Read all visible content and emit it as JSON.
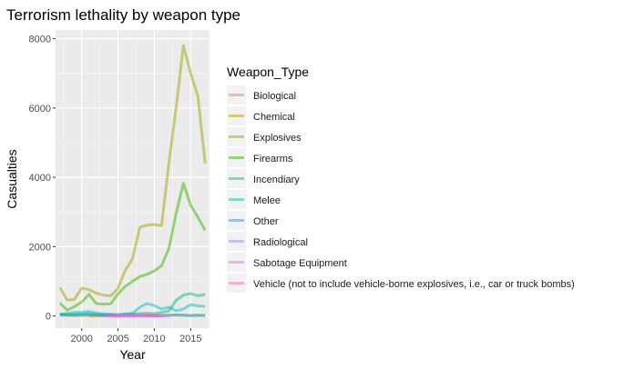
{
  "chart_data": {
    "type": "line",
    "title": "Terrorism lethality by weapon type",
    "xlabel": "Year",
    "ylabel": "Casualties",
    "xlim": [
      1996.4,
      2017.6
    ],
    "ylim": [
      -350,
      8250
    ],
    "x_ticks": [
      2000,
      2005,
      2010,
      2015
    ],
    "y_ticks": [
      0,
      2000,
      4000,
      6000,
      8000
    ],
    "grid": true,
    "legend_title": "Weapon_Type",
    "legend_position": "right",
    "series": [
      {
        "name": "Biological",
        "color": "#F8766D",
        "x": [
          2001,
          2005
        ],
        "y": [
          5,
          0
        ]
      },
      {
        "name": "Chemical",
        "color": "#D89000",
        "x": [
          1997,
          1998,
          1999,
          2000,
          2001,
          2002,
          2003,
          2004,
          2005,
          2006,
          2007,
          2008,
          2009,
          2010,
          2011,
          2012,
          2013,
          2014,
          2015,
          2016,
          2017
        ],
        "y": [
          20,
          10,
          15,
          10,
          15,
          10,
          20,
          25,
          20,
          30,
          20,
          15,
          20,
          10,
          15,
          20,
          25,
          20,
          15,
          20,
          15
        ]
      },
      {
        "name": "Explosives",
        "color": "#A3A500",
        "x": [
          1997,
          1998,
          1999,
          2000,
          2001,
          2002,
          2003,
          2004,
          2005,
          2006,
          2007,
          2008,
          2009,
          2010,
          2011,
          2012,
          2013,
          2014,
          2015,
          2016,
          2017
        ],
        "y": [
          820,
          460,
          480,
          800,
          760,
          660,
          600,
          580,
          800,
          1320,
          1650,
          2560,
          2620,
          2640,
          2610,
          4410,
          5990,
          7800,
          7000,
          6350,
          4400
        ]
      },
      {
        "name": "Firearms",
        "color": "#39B600",
        "x": [
          1997,
          1998,
          1999,
          2000,
          2001,
          2002,
          2003,
          2004,
          2005,
          2006,
          2007,
          2008,
          2009,
          2010,
          2011,
          2012,
          2013,
          2014,
          2015,
          2016,
          2017
        ],
        "y": [
          370,
          170,
          270,
          400,
          620,
          360,
          340,
          350,
          640,
          850,
          1000,
          1140,
          1200,
          1300,
          1450,
          1950,
          2950,
          3830,
          3200,
          2850,
          2470
        ]
      },
      {
        "name": "Incendiary",
        "color": "#00BF7D",
        "x": [
          1997,
          1998,
          1999,
          2000,
          2001,
          2002,
          2003,
          2004,
          2005,
          2006,
          2007,
          2008,
          2009,
          2010,
          2011,
          2012,
          2013,
          2014,
          2015,
          2016,
          2017
        ],
        "y": [
          60,
          40,
          50,
          60,
          70,
          50,
          40,
          50,
          40,
          50,
          60,
          70,
          80,
          70,
          100,
          150,
          450,
          600,
          650,
          580,
          620
        ]
      },
      {
        "name": "Melee",
        "color": "#00BFC4",
        "x": [
          1997,
          1998,
          1999,
          2000,
          2001,
          2002,
          2003,
          2004,
          2005,
          2006,
          2007,
          2008,
          2009,
          2010,
          2011,
          2012,
          2013,
          2014,
          2015,
          2016,
          2017
        ],
        "y": [
          30,
          80,
          100,
          110,
          130,
          90,
          60,
          40,
          30,
          60,
          80,
          250,
          360,
          300,
          200,
          250,
          150,
          200,
          330,
          290,
          280
        ]
      },
      {
        "name": "Other",
        "color": "#00A5FF",
        "x": [
          1997,
          1998,
          1999,
          2000,
          2001,
          2002,
          2003,
          2004,
          2005,
          2006,
          2007,
          2008,
          2009,
          2010,
          2011,
          2012,
          2013,
          2014,
          2015,
          2016,
          2017
        ],
        "y": [
          40,
          30,
          20,
          30,
          40,
          30,
          20,
          20,
          10,
          20,
          30,
          20,
          20,
          15,
          10,
          20,
          30,
          20,
          10,
          20,
          15
        ]
      },
      {
        "name": "Radiological",
        "color": "#9590FF",
        "x": [
          2005,
          2006,
          2007,
          2008,
          2009,
          2010
        ],
        "y": [
          0,
          5,
          0,
          5,
          0,
          5
        ]
      },
      {
        "name": "Sabotage Equipment",
        "color": "#E76BF3",
        "x": [
          2003,
          2004,
          2005,
          2006,
          2007,
          2008,
          2009,
          2010,
          2011,
          2012
        ],
        "y": [
          0,
          5,
          10,
          5,
          0,
          5,
          10,
          5,
          0,
          5
        ]
      },
      {
        "name": "Vehicle (not to include vehicle-borne explosives, i.e., car or truck bombs)",
        "color": "#FF62BC",
        "x": [
          2004,
          2005,
          2006,
          2007,
          2008,
          2009,
          2010,
          2011
        ],
        "y": [
          0,
          5,
          30,
          10,
          20,
          10,
          0,
          10
        ]
      }
    ]
  }
}
